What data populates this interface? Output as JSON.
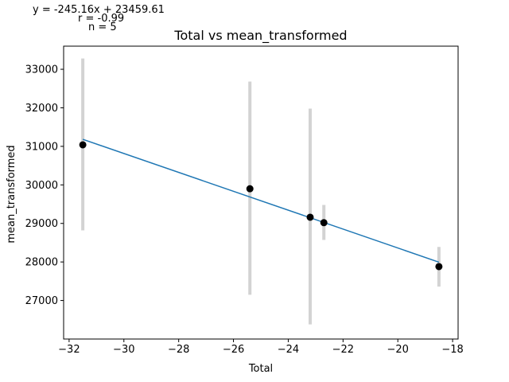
{
  "annotations": {
    "equation": "y = -245.16x + 23459.61",
    "r": "r = -0.99",
    "n": "n = 5"
  },
  "chart_data": {
    "type": "scatter",
    "title": "Total vs mean_transformed",
    "xlabel": "Total",
    "ylabel": "mean_transformed",
    "xlim": [
      -32.2,
      -17.8
    ],
    "ylim": [
      26000,
      33600
    ],
    "xticks": [
      -32,
      -30,
      -28,
      -26,
      -24,
      -22,
      -20,
      -18
    ],
    "xtick_labels": [
      "−32",
      "−30",
      "−28",
      "−26",
      "−24",
      "−22",
      "−20",
      "−18"
    ],
    "yticks": [
      27000,
      28000,
      29000,
      30000,
      31000,
      32000,
      33000
    ],
    "ytick_labels": [
      "27000",
      "28000",
      "29000",
      "30000",
      "31000",
      "32000",
      "33000"
    ],
    "points": [
      {
        "x": -31.5,
        "y": 31040,
        "err_low": 28820,
        "err_high": 33280
      },
      {
        "x": -25.4,
        "y": 29900,
        "err_low": 27150,
        "err_high": 32680
      },
      {
        "x": -23.2,
        "y": 29160,
        "err_low": 26380,
        "err_high": 31980
      },
      {
        "x": -22.7,
        "y": 29020,
        "err_low": 28570,
        "err_high": 29480
      },
      {
        "x": -18.5,
        "y": 27880,
        "err_low": 27360,
        "err_high": 28390
      }
    ],
    "fit_line": {
      "x": [
        -31.5,
        -18.5
      ],
      "y": [
        31182,
        27995
      ]
    },
    "colors": {
      "points": "#000000",
      "errorbars": "#d3d3d3",
      "fit": "#1f77b4"
    },
    "grid": false,
    "legend": "none"
  }
}
